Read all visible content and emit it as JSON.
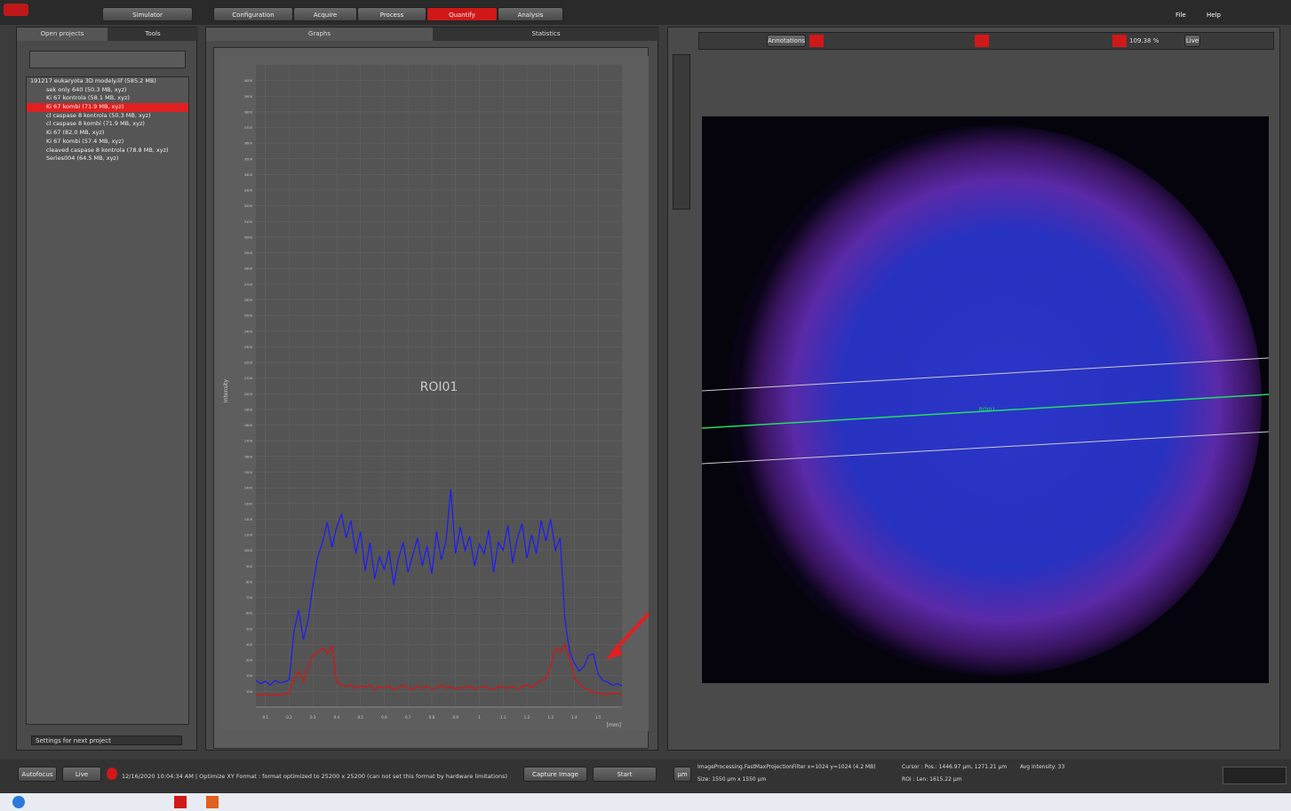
{
  "top_bar": {
    "simulator": "Simulator",
    "steps": [
      "Configuration",
      "Acquire",
      "Process",
      "Quantify",
      "Analysis"
    ],
    "menu": [
      "File",
      "Help"
    ]
  },
  "left_panel": {
    "tabs": [
      "Open projects",
      "Tools"
    ],
    "project": "191217 eukaryota 3D modely.lif",
    "project_size": "(585.2 MB)",
    "items": [
      "sek only 640   (50.3 MB, xyz)",
      "Ki 67 kontrola   (58.1 MB, xyz)",
      "Ki 67 kombi   (71.9 MB, xyz)",
      "cl caspase 8 kontrola   (50.3 MB, xyz)",
      "cl caspase 8 kombi   (71.9 MB, xyz)",
      "Ki 67   (82.0 MB, xyz)",
      "Ki 67 kombi   (57.4 MB, xyz)",
      "cleaved caspase 8 kontrola   (78.8 MB, xyz)",
      "Series004   (64.5 MB, xyz)"
    ],
    "settings": "Settings for next project"
  },
  "graph_panel": {
    "tabs": [
      "Graphs",
      "Statistics"
    ]
  },
  "chart_data": {
    "type": "line",
    "title": "ROI01",
    "y_label": "Intensity",
    "x_label": "[mm]",
    "x": [
      0.06,
      0.08,
      0.1,
      0.12,
      0.14,
      0.16,
      0.18,
      0.2,
      0.22,
      0.24,
      0.26,
      0.28,
      0.3,
      0.32,
      0.34,
      0.36,
      0.38,
      0.4,
      0.42,
      0.44,
      0.46,
      0.48,
      0.5,
      0.52,
      0.54,
      0.56,
      0.58,
      0.6,
      0.62,
      0.64,
      0.66,
      0.68,
      0.7,
      0.72,
      0.74,
      0.76,
      0.78,
      0.8,
      0.82,
      0.84,
      0.86,
      0.88,
      0.9,
      0.92,
      0.94,
      0.96,
      0.98,
      1.0,
      1.02,
      1.04,
      1.06,
      1.08,
      1.1,
      1.12,
      1.14,
      1.16,
      1.18,
      1.2,
      1.22,
      1.24,
      1.26,
      1.28,
      1.3,
      1.32,
      1.34,
      1.36,
      1.38,
      1.4,
      1.42,
      1.44,
      1.46,
      1.48,
      1.5,
      1.52,
      1.54,
      1.56,
      1.58,
      1.6
    ],
    "series": [
      {
        "color": "#1a1aff",
        "values": [
          170,
          150,
          165,
          140,
          170,
          155,
          160,
          175,
          480,
          620,
          430,
          560,
          780,
          960,
          1050,
          1180,
          1020,
          1150,
          1230,
          1080,
          1190,
          980,
          1120,
          870,
          1050,
          820,
          960,
          880,
          1000,
          780,
          950,
          1050,
          860,
          970,
          1080,
          900,
          1030,
          850,
          1120,
          940,
          1060,
          1390,
          980,
          1150,
          1000,
          1090,
          900,
          1040,
          980,
          1130,
          860,
          1050,
          1000,
          1160,
          920,
          1080,
          1170,
          950,
          1100,
          980,
          1190,
          1060,
          1200,
          1000,
          1080,
          560,
          350,
          280,
          230,
          260,
          330,
          340,
          210,
          170,
          160,
          140,
          150,
          135
        ]
      },
      {
        "color": "#e01010",
        "values": [
          80,
          75,
          85,
          70,
          80,
          75,
          85,
          90,
          180,
          230,
          160,
          260,
          330,
          350,
          380,
          340,
          390,
          160,
          140,
          130,
          145,
          120,
          135,
          125,
          140,
          115,
          130,
          120,
          135,
          110,
          125,
          140,
          120,
          115,
          130,
          120,
          135,
          115,
          125,
          140,
          120,
          130,
          115,
          125,
          120,
          135,
          115,
          125,
          130,
          120,
          115,
          130,
          125,
          120,
          135,
          115,
          130,
          140,
          125,
          150,
          170,
          180,
          260,
          380,
          350,
          400,
          310,
          180,
          150,
          120,
          110,
          95,
          90,
          85,
          80,
          90,
          85,
          80
        ]
      }
    ],
    "xlim": [
      0.06,
      1.6
    ],
    "ylim": [
      0,
      4100
    ],
    "xticks": [
      0.1,
      0.2,
      0.3,
      0.4,
      0.5,
      0.6,
      0.7,
      0.8,
      0.9,
      1,
      1.1,
      1.2,
      1.3,
      1.4,
      1.5
    ],
    "yticks": [
      100,
      200,
      300,
      400,
      500,
      600,
      700,
      800,
      900,
      1000,
      1100,
      1200,
      1300,
      1400,
      1500,
      1600,
      1700,
      1800,
      1900,
      2000,
      2100,
      2200,
      2300,
      2400,
      2500,
      2600,
      2700,
      2800,
      2900,
      3000,
      3100,
      3200,
      3300,
      3400,
      3500,
      3600,
      3700,
      3800,
      3900,
      4000
    ],
    "grid": true
  },
  "viewer": {
    "annotations": "Annotations",
    "zoom": "109.38 %",
    "live": "Live",
    "roi_label": "ROI01"
  },
  "status": {
    "autofocus": "Autofocus",
    "live": "Live",
    "message": "12/16/2020 10:04:34 AM | Optimize XY Format : format optimized to 25200 x 25200 (can not set this format by hardware limitations)",
    "capture": "Capture Image",
    "start": "Start",
    "unit": "µm",
    "filter": "ImageProcessing.FastMaxProjectionFilter x=1024 y=1024 (4.2 MB)",
    "size": "Size: 1550 µm x 1550 µm",
    "cursor": "Cursor :  Pos.: 1446.97 µm, 1271.21 µm",
    "roi": "ROI :   Len: 1615.22 µm",
    "avg": "Avg Intensity: 33"
  }
}
